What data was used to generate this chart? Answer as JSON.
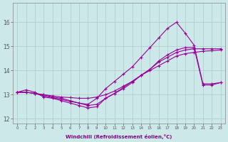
{
  "xlabel": "Windchill (Refroidissement éolien,°C)",
  "background_color": "#cce8e8",
  "line_color": "#990099",
  "xlim": [
    -0.5,
    23.5
  ],
  "ylim": [
    11.8,
    16.8
  ],
  "yticks": [
    12,
    13,
    14,
    15,
    16
  ],
  "xticks": [
    0,
    1,
    2,
    3,
    4,
    5,
    6,
    7,
    8,
    9,
    10,
    11,
    12,
    13,
    14,
    15,
    16,
    17,
    18,
    19,
    20,
    21,
    22,
    23
  ],
  "series": [
    {
      "x": [
        0,
        1,
        2,
        3,
        4,
        5,
        6,
        7,
        8,
        9,
        10,
        11,
        12,
        13,
        14,
        15,
        16,
        17,
        18,
        19,
        20,
        21,
        22,
        23
      ],
      "y": [
        13.1,
        13.1,
        13.05,
        13.0,
        12.9,
        12.85,
        12.75,
        12.65,
        12.6,
        12.85,
        13.25,
        13.55,
        13.85,
        14.15,
        14.55,
        14.95,
        15.35,
        15.75,
        16.0,
        15.55,
        15.05,
        13.45,
        13.45,
        13.5
      ]
    },
    {
      "x": [
        0,
        1,
        2,
        3,
        4,
        5,
        6,
        7,
        8,
        9,
        10,
        11,
        12,
        13,
        14,
        15,
        16,
        17,
        18,
        19,
        20,
        21,
        22,
        23
      ],
      "y": [
        13.1,
        13.2,
        13.1,
        12.9,
        12.85,
        12.75,
        12.65,
        12.55,
        12.45,
        12.5,
        12.85,
        13.05,
        13.25,
        13.5,
        13.8,
        14.05,
        14.35,
        14.55,
        14.75,
        14.85,
        14.9,
        14.9,
        14.9,
        14.9
      ]
    },
    {
      "x": [
        0,
        1,
        2,
        3,
        4,
        5,
        6,
        7,
        8,
        9,
        10,
        11,
        12,
        13,
        14,
        15,
        16,
        17,
        18,
        19,
        20,
        21,
        22,
        23
      ],
      "y": [
        13.1,
        13.1,
        13.05,
        13.0,
        12.95,
        12.9,
        12.88,
        12.85,
        12.85,
        12.9,
        13.0,
        13.15,
        13.35,
        13.55,
        13.8,
        14.05,
        14.4,
        14.65,
        14.85,
        14.95,
        14.95,
        13.4,
        13.4,
        13.5
      ]
    },
    {
      "x": [
        0,
        1,
        2,
        3,
        4,
        5,
        6,
        7,
        8,
        9,
        10,
        11,
        12,
        13,
        14,
        15,
        16,
        17,
        18,
        19,
        20,
        21,
        22,
        23
      ],
      "y": [
        13.1,
        13.1,
        13.05,
        12.95,
        12.88,
        12.8,
        12.72,
        12.65,
        12.55,
        12.6,
        12.85,
        13.05,
        13.3,
        13.55,
        13.8,
        14.0,
        14.2,
        14.4,
        14.6,
        14.7,
        14.75,
        14.8,
        14.82,
        14.85
      ]
    }
  ]
}
